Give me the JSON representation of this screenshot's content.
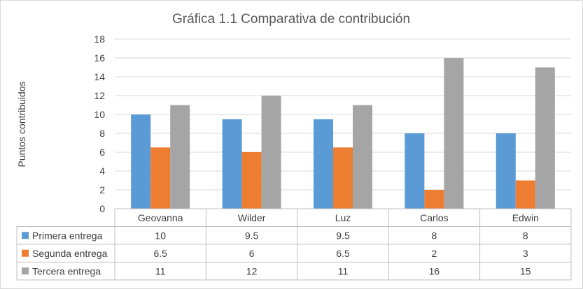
{
  "chart_data": {
    "type": "bar",
    "title": "Gráfica 1.1 Comparativa de contribución",
    "ylabel": "Puntos contribuidos",
    "xlabel": "",
    "ylim": [
      0,
      18
    ],
    "ytick_step": 2,
    "grid": true,
    "legend_placement": "data-table",
    "categories": [
      "Geovanna",
      "Wilder",
      "Luz",
      "Carlos",
      "Edwin"
    ],
    "series": [
      {
        "name": "Primera entrega",
        "color": "#5b9bd5",
        "values": [
          10,
          9.5,
          9.5,
          8,
          8
        ]
      },
      {
        "name": "Segunda entrega",
        "color": "#ed7d31",
        "values": [
          6.5,
          6,
          6.5,
          2,
          3
        ]
      },
      {
        "name": "Tercera entrega",
        "color": "#a5a5a5",
        "values": [
          11,
          12,
          11,
          16,
          15
        ]
      }
    ]
  }
}
